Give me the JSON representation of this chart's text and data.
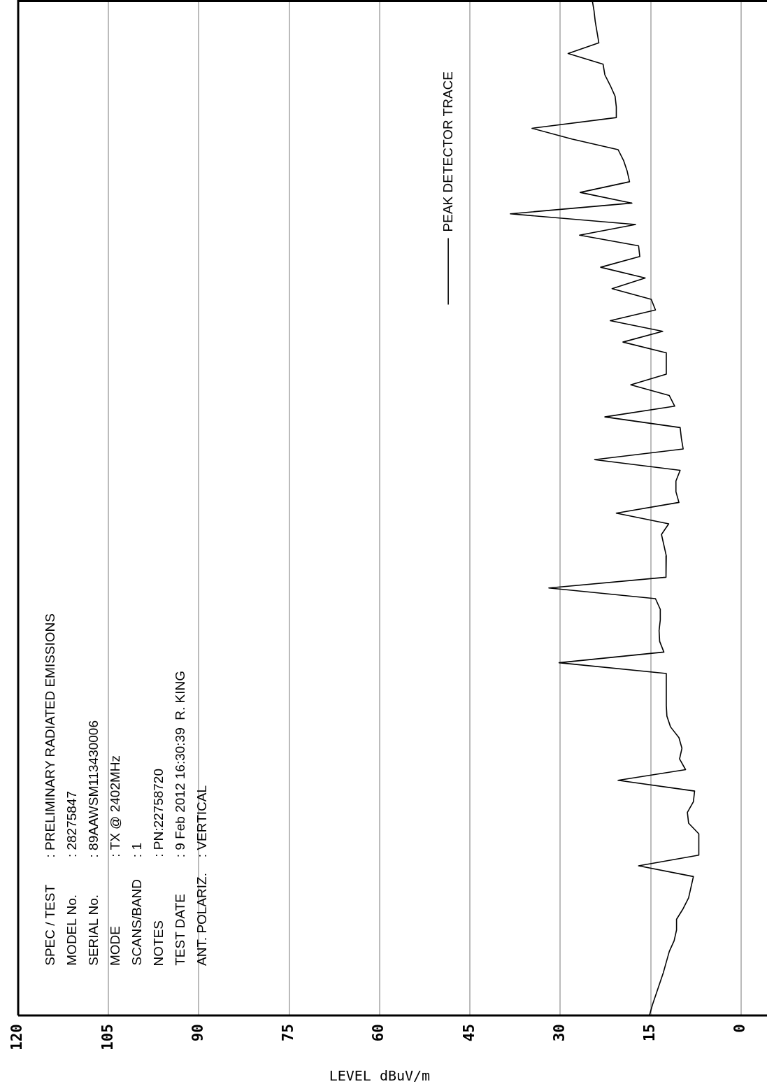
{
  "chart_data": {
    "type": "line",
    "orientation": "horizontal",
    "categories": [
      null,
      null,
      null,
      null,
      null,
      null,
      null,
      null,
      null,
      null,
      null,
      null,
      null,
      null,
      null,
      null,
      null,
      null,
      null,
      null,
      null,
      null,
      null,
      null,
      null,
      null,
      null,
      null,
      null,
      null,
      null,
      null,
      null,
      null,
      null,
      null,
      null,
      null,
      null,
      null,
      null,
      null,
      null,
      null,
      null,
      null,
      null,
      null,
      null,
      null,
      null,
      null,
      null,
      null,
      null,
      null,
      null,
      null,
      null,
      null,
      null,
      null,
      null,
      null,
      null,
      null,
      null,
      null,
      null,
      null,
      null,
      null,
      null,
      null,
      null,
      null,
      null,
      null,
      null,
      null,
      null,
      null,
      null,
      null,
      null,
      null,
      null,
      null,
      null,
      null,
      null,
      null,
      null,
      null,
      null,
      null
    ],
    "series": [
      {
        "name": "PEAK DETECTOR TRACE",
        "color": "#000000",
        "values": [
          24.7,
          24.4,
          24.2,
          23.9,
          23.6,
          28.7,
          22.9,
          22.6,
          21.7,
          20.9,
          20.7,
          20.7,
          34.7,
          28.1,
          20.4,
          19.5,
          18.9,
          18.5,
          26.7,
          18.1,
          38.3,
          17.5,
          26.8,
          17.0,
          16.8,
          23.3,
          15.9,
          21.4,
          14.9,
          14.2,
          21.7,
          13.0,
          19.6,
          12.4,
          12.4,
          12.4,
          18.3,
          11.9,
          11.0,
          22.6,
          10.1,
          9.9,
          9.6,
          24.3,
          10.1,
          10.8,
          10.8,
          10.3,
          20.7,
          12.0,
          13.2,
          12.8,
          12.4,
          12.4,
          12.5,
          31.9,
          14.2,
          13.4,
          13.4,
          13.6,
          13.5,
          12.8,
          30.2,
          12.4,
          12.4,
          12.4,
          12.4,
          12.3,
          11.7,
          10.3,
          9.8,
          10.2,
          9.2,
          20.4,
          7.7,
          7.9,
          8.9,
          8.7,
          7.0,
          7.0,
          7.0,
          17.0,
          7.9,
          8.3,
          8.7,
          9.6,
          10.7,
          10.7,
          11.1,
          11.9,
          12.4,
          12.9,
          13.5,
          14.1,
          14.7,
          15.2
        ]
      }
    ],
    "xlabel": "LEVEL dBuV/m",
    "xlim": [
      120,
      0
    ],
    "xticks": [
      120,
      105,
      90,
      75,
      60,
      45,
      30,
      15,
      0
    ],
    "grid": "x",
    "legend": "top right",
    "marker": "none",
    "tick_labels": "x",
    "annotations": [
      "SPEC / TEST : PRELIMINARY RADIATED EMISSIONS",
      "MODEL No. : 28275847",
      "SERIAL No. : 89AAWSM113430006",
      "MODE : TX @ 2402MHz",
      "SCANS/BAND : 1",
      "NOTES : PN:22758720",
      "TEST DATE : 9 Feb 2012 16:30:39  R. KING",
      "ANT. POLARIZ. : VERTICAL"
    ]
  }
}
